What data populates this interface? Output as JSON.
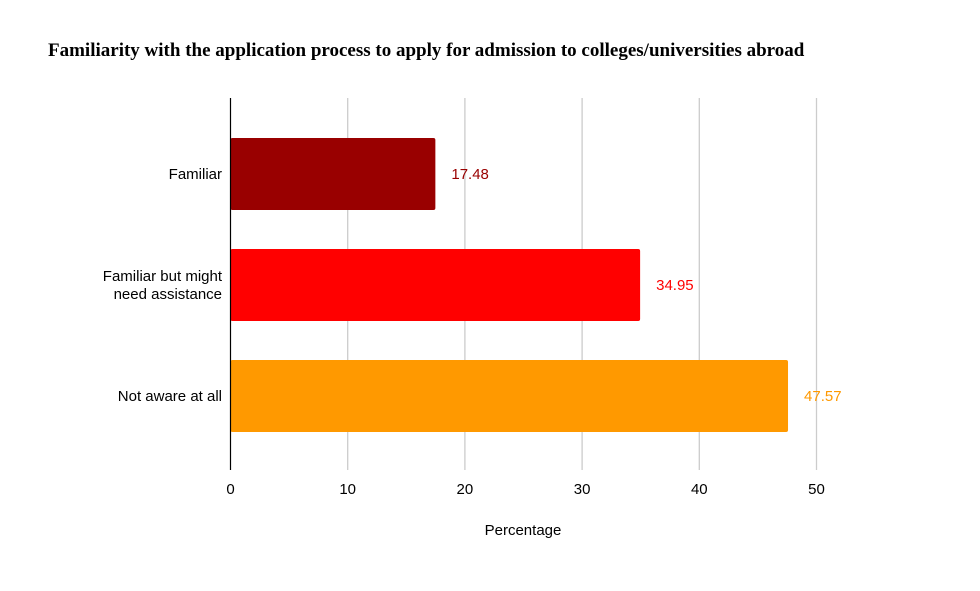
{
  "chart_data": {
    "type": "bar",
    "orientation": "horizontal",
    "title": "Familiarity with the application process to apply for admission to colleges/universities abroad",
    "xlabel": "Percentage",
    "ylabel": "",
    "categories": [
      [
        "Familiar"
      ],
      [
        "Familiar but might",
        "need assistance"
      ],
      [
        "Not aware at all"
      ]
    ],
    "values": [
      17.48,
      34.95,
      47.57
    ],
    "value_labels": [
      "17.48",
      "34.95",
      "47.57"
    ],
    "colors": [
      "#990000",
      "#ff0000",
      "#ff9900"
    ],
    "xlim": [
      0,
      50
    ],
    "ticks": [
      0,
      10,
      20,
      30,
      40,
      50
    ],
    "tick_labels": [
      "0",
      "10",
      "20",
      "30",
      "40",
      "50"
    ],
    "grid": true,
    "legend": "none"
  }
}
